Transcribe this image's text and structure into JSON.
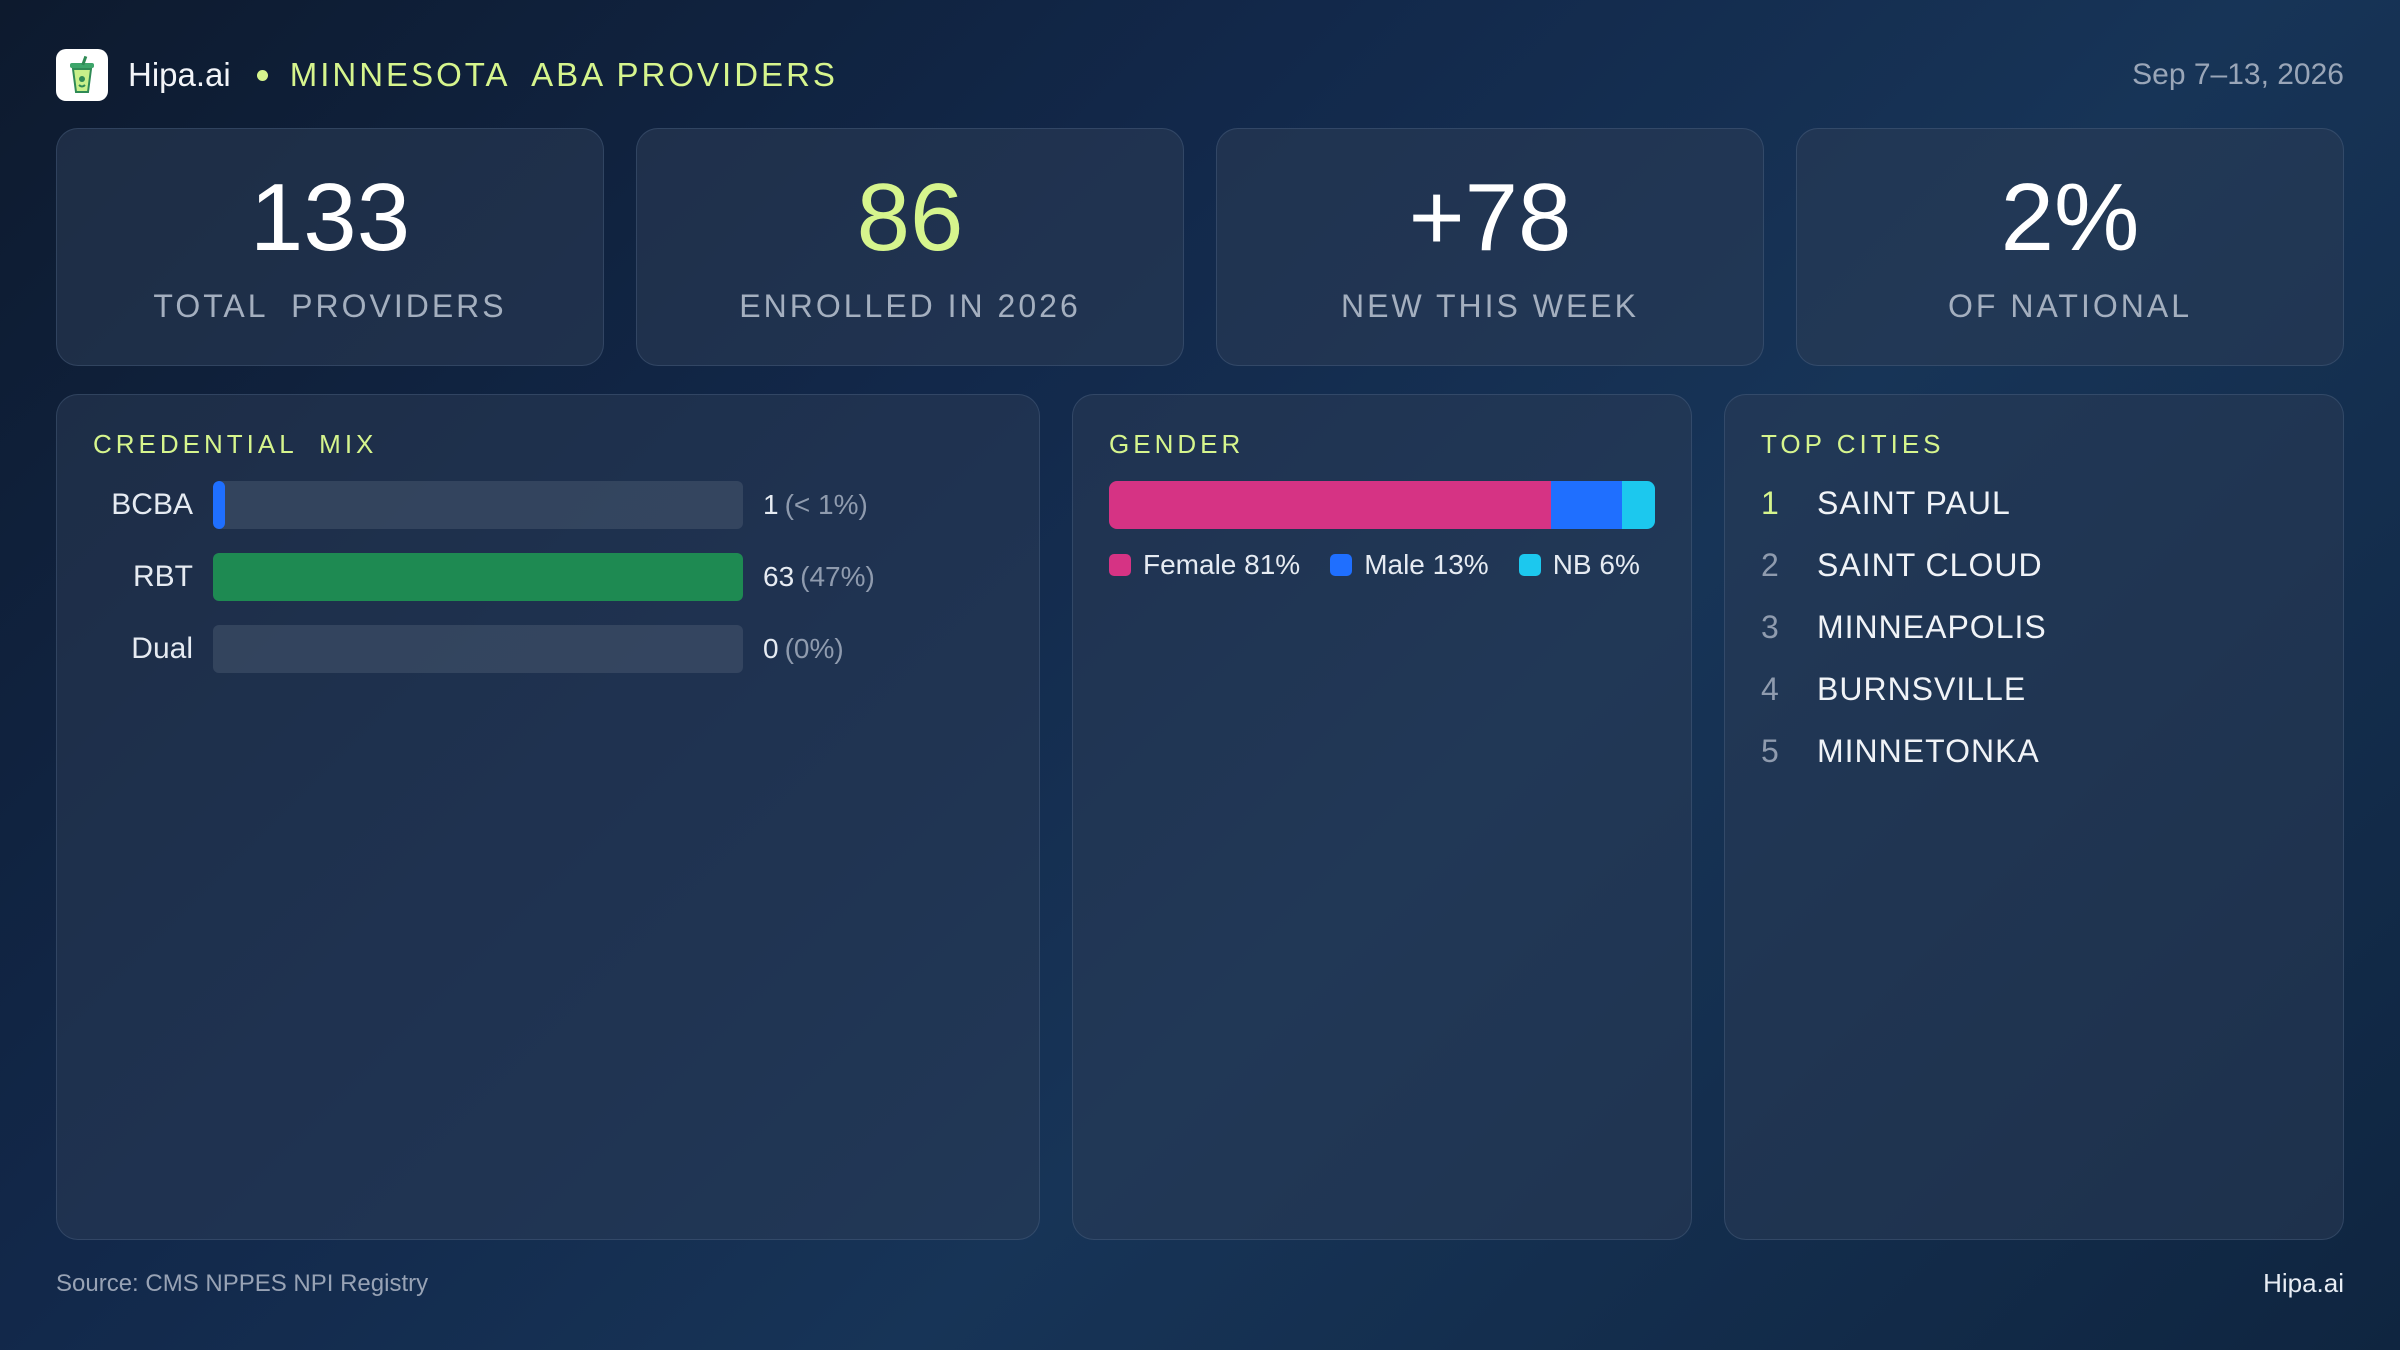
{
  "header": {
    "brand": "Hipa.ai",
    "subtitle": "MINNESOTA  ABA PROVIDERS",
    "date_range": "Sep 7–13, 2026"
  },
  "stats": [
    {
      "value": "133",
      "label": "TOTAL  PROVIDERS",
      "accent": false
    },
    {
      "value": "86",
      "label": "ENROLLED IN 2026",
      "accent": true
    },
    {
      "value": "+78",
      "label": "NEW THIS WEEK",
      "accent": false
    },
    {
      "value": "2%",
      "label": "OF NATIONAL",
      "accent": false
    }
  ],
  "credential_mix": {
    "title": "CREDENTIAL  MIX",
    "rows": [
      {
        "label": "BCBA",
        "count": "1",
        "pct": "(< 1%)",
        "fraction": 0.0075,
        "color": "#1f6fff"
      },
      {
        "label": "RBT",
        "count": "63",
        "pct": "(47%)",
        "fraction": 1.0,
        "color": "#1e8a52"
      },
      {
        "label": "Dual",
        "count": "0",
        "pct": "(0%)",
        "fraction": 0,
        "color": "#1e8a52"
      }
    ]
  },
  "gender": {
    "title": "GENDER",
    "segments": [
      {
        "label": "Female 81%",
        "percent": 81,
        "color": "#d63384"
      },
      {
        "label": "Male 13%",
        "percent": 13,
        "color": "#1f6fff"
      },
      {
        "label": "NB 6%",
        "percent": 6,
        "color": "#1cc8ee"
      }
    ]
  },
  "top_cities": {
    "title": "TOP CITIES",
    "items": [
      {
        "rank": "1",
        "name": "SAINT PAUL"
      },
      {
        "rank": "2",
        "name": "SAINT CLOUD"
      },
      {
        "rank": "3",
        "name": "MINNEAPOLIS"
      },
      {
        "rank": "4",
        "name": "BURNSVILLE"
      },
      {
        "rank": "5",
        "name": "MINNETONKA"
      }
    ]
  },
  "footer": {
    "source": "Source: CMS NPPES NPI Registry",
    "brand": "Hipa.ai"
  },
  "colors": {
    "accent": "#d6f58d",
    "background": "#12284a"
  },
  "icons": {
    "logo": "drink-cup-icon"
  }
}
